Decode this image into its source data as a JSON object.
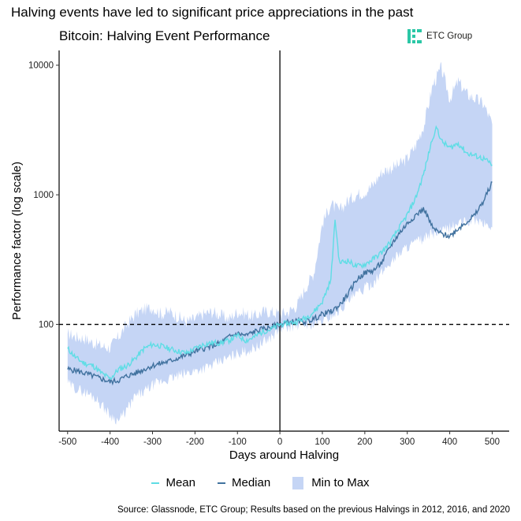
{
  "headline": "Halving events have led to significant price appreciations in the past",
  "logo": {
    "text": "ETC Group",
    "color": "#2bc7a6"
  },
  "legend": {
    "mean": "Mean",
    "median": "Median",
    "range": "Min to Max"
  },
  "source": "Source: Glassnode, ETC Group; Results based on the previous Halvings in 2012, 2016, and 2020",
  "colors": {
    "mean": "#5fdde5",
    "median": "#41729f",
    "range": "#c5d5f5",
    "reference": "#000000"
  },
  "chart_data": {
    "type": "line",
    "title": "Bitcoin: Halving Event Performance",
    "xlabel": "Days around Halving",
    "ylabel": "Performance factor (log scale)",
    "y_scale": "log",
    "xlim": [
      -520,
      540
    ],
    "ylim": [
      15,
      13000
    ],
    "x_ticks": [
      -500,
      -400,
      -300,
      -200,
      -100,
      0,
      100,
      200,
      300,
      400,
      500
    ],
    "y_ticks": [
      100,
      1000,
      10000
    ],
    "reference_lines": {
      "horizontal_y": 100,
      "vertical_x": 0
    },
    "series": [
      {
        "name": "Mean",
        "x": [
          -500,
          -480,
          -460,
          -440,
          -420,
          -400,
          -380,
          -360,
          -340,
          -320,
          -300,
          -280,
          -260,
          -240,
          -220,
          -200,
          -180,
          -160,
          -140,
          -120,
          -100,
          -80,
          -60,
          -40,
          -20,
          0,
          20,
          40,
          60,
          80,
          100,
          120,
          130,
          140,
          160,
          180,
          200,
          220,
          240,
          260,
          280,
          300,
          320,
          340,
          360,
          370,
          380,
          400,
          420,
          440,
          460,
          480,
          500
        ],
        "values": [
          65,
          55,
          50,
          48,
          42,
          38,
          45,
          48,
          55,
          65,
          70,
          68,
          65,
          62,
          60,
          65,
          70,
          72,
          72,
          75,
          82,
          75,
          80,
          88,
          92,
          100,
          102,
          105,
          112,
          125,
          150,
          220,
          650,
          300,
          310,
          280,
          290,
          320,
          360,
          430,
          550,
          700,
          950,
          1500,
          2800,
          3300,
          2600,
          2300,
          2500,
          2100,
          2000,
          1900,
          1700
        ]
      },
      {
        "name": "Median",
        "x": [
          -500,
          -480,
          -460,
          -440,
          -420,
          -400,
          -380,
          -360,
          -340,
          -320,
          -300,
          -280,
          -260,
          -240,
          -220,
          -200,
          -180,
          -160,
          -140,
          -120,
          -100,
          -80,
          -60,
          -40,
          -20,
          0,
          20,
          40,
          60,
          80,
          100,
          120,
          140,
          160,
          180,
          200,
          220,
          240,
          260,
          280,
          300,
          320,
          340,
          360,
          380,
          400,
          420,
          440,
          460,
          480,
          500
        ],
        "values": [
          45,
          44,
          42,
          40,
          38,
          36,
          37,
          40,
          42,
          45,
          48,
          50,
          52,
          55,
          58,
          62,
          65,
          68,
          72,
          80,
          85,
          82,
          88,
          92,
          95,
          100,
          104,
          106,
          105,
          110,
          120,
          125,
          140,
          170,
          220,
          250,
          260,
          300,
          400,
          500,
          600,
          700,
          780,
          550,
          500,
          480,
          550,
          620,
          700,
          900,
          1250
        ]
      },
      {
        "name": "Min to Max",
        "x": [
          -500,
          -480,
          -460,
          -440,
          -420,
          -400,
          -380,
          -360,
          -340,
          -320,
          -300,
          -280,
          -260,
          -240,
          -220,
          -200,
          -180,
          -160,
          -140,
          -120,
          -100,
          -80,
          -60,
          -40,
          -20,
          0,
          20,
          40,
          60,
          80,
          100,
          120,
          140,
          160,
          180,
          200,
          220,
          240,
          260,
          280,
          300,
          320,
          340,
          360,
          380,
          400,
          420,
          440,
          460,
          480,
          500
        ],
        "min": [
          35,
          32,
          30,
          28,
          24,
          20,
          18,
          22,
          28,
          30,
          34,
          36,
          38,
          40,
          42,
          44,
          46,
          48,
          52,
          55,
          60,
          62,
          66,
          72,
          80,
          92,
          95,
          98,
          100,
          100,
          105,
          115,
          130,
          150,
          170,
          190,
          210,
          250,
          300,
          350,
          400,
          430,
          460,
          500,
          520,
          560,
          600,
          620,
          640,
          600,
          560
        ],
        "max": [
          85,
          80,
          78,
          72,
          68,
          66,
          80,
          100,
          120,
          130,
          135,
          120,
          125,
          115,
          105,
          110,
          120,
          125,
          118,
          110,
          125,
          120,
          115,
          125,
          125,
          120,
          125,
          140,
          190,
          250,
          600,
          850,
          750,
          900,
          1000,
          1050,
          1200,
          1500,
          1600,
          1700,
          1900,
          2400,
          3500,
          7000,
          9500,
          5500,
          7500,
          6000,
          5500,
          5000,
          3500
        ]
      }
    ]
  }
}
